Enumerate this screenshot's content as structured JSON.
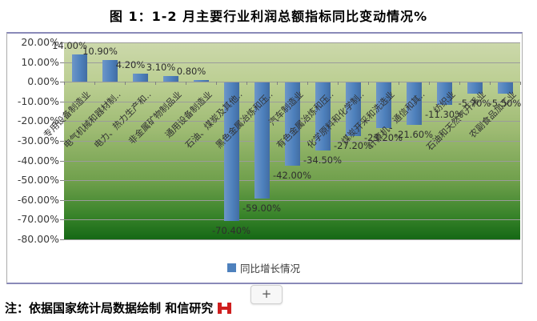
{
  "title": "图 1：1-2 月主要行业利润总额指标同比变动情况%",
  "footer": {
    "note": "注：依据国家统计局数据绘制 和信研究",
    "logo": "hexin-red-logo"
  },
  "zoom_button_label": "+",
  "chart_data": {
    "type": "bar",
    "title": "图 1：1-2 月主要行业利润总额指标同比变动情况%",
    "categories": [
      "专用设备制造业",
      "电气机械和器材制‥",
      "电力、热力生产和‥",
      "非金属矿物制品业",
      "通用设备制造业",
      "石油、煤炭及其他‥",
      "黑色金属冶炼和压‥",
      "汽车制造业",
      "有色金属冶炼和压‥",
      "化学原料和化学制‥",
      "煤炭开采和洗选业",
      "计算机、通信和其‥",
      "纺织业",
      "石油和天然气开采业",
      "农副食品加工业"
    ],
    "values": [
      14.0,
      10.9,
      4.2,
      3.1,
      0.8,
      -70.4,
      -59.0,
      -42.0,
      -34.5,
      -27.2,
      -23.2,
      -21.6,
      -11.3,
      -5.7,
      -5.5
    ],
    "value_labels": [
      "14.00%",
      "10.90%",
      "4.20%",
      "3.10%",
      "0.80%",
      "-70.40%",
      "-59.00%",
      "-42.00%",
      "-34.50%",
      "-27.20%",
      "-23.20%",
      "-21.60%",
      "-11.30%",
      "-5.70%",
      "-5.50%"
    ],
    "series_name": "同比增长情况",
    "legend": {
      "label": "同比增长情况",
      "color": "#4E81BD",
      "position": "bottom"
    },
    "xlabel": "",
    "ylabel": "",
    "ylim": [
      -80,
      20
    ],
    "y_ticks": [
      "20.00%",
      "10.00%",
      "0.00%",
      "-10.00%",
      "-20.00%",
      "-30.00%",
      "-40.00%",
      "-50.00%",
      "-60.00%",
      "-70.00%",
      "-80.00%"
    ],
    "grid": true,
    "bar_color": "#4E81BD",
    "grid_color": "#9B9B9B",
    "plot_bg_top": "#CCD8AB",
    "plot_bg_bottom": "#156815"
  }
}
